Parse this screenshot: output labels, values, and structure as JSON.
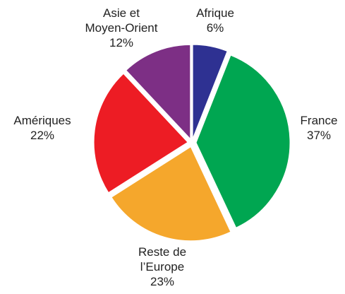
{
  "chart_data": {
    "type": "pie",
    "categories": [
      "Afrique",
      "France",
      "Reste de\nl’Europe",
      "Amériques",
      "Asie et\nMoyen-Orient"
    ],
    "values": [
      6,
      37,
      23,
      22,
      12
    ],
    "value_labels": [
      "6%",
      "37%",
      "23%",
      "22%",
      "12%"
    ],
    "colors": [
      "#2e3192",
      "#00a651",
      "#f5a72c",
      "#ed1c24",
      "#7d2f85"
    ]
  }
}
